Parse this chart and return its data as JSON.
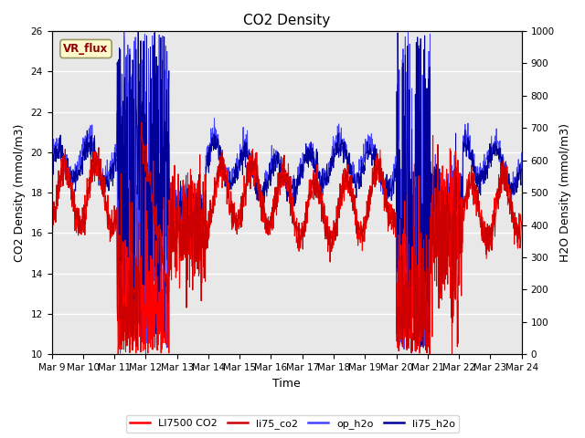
{
  "title": "CO2 Density",
  "xlabel": "Time",
  "ylabel_left": "CO2 Density (mmol/m3)",
  "ylabel_right": "H2O Density (mmol/m3)",
  "ylim_left": [
    10,
    26
  ],
  "ylim_right": [
    0,
    1000
  ],
  "x_tick_labels": [
    "Mar 9",
    "Mar 10",
    "Mar 11",
    "Mar 12",
    "Mar 13",
    "Mar 14",
    "Mar 15",
    "Mar 16",
    "Mar 17",
    "Mar 18",
    "Mar 19",
    "Mar 20",
    "Mar 21",
    "Mar 22",
    "Mar 23",
    "Mar 24"
  ],
  "vr_flux_label": "VR_flux",
  "legend_labels": [
    "LI7500 CO2",
    "li75_co2",
    "op_h2o",
    "li75_h2o"
  ],
  "line_colors_bright_red": "#FF0000",
  "line_colors_dark_red": "#CC0000",
  "line_colors_bright_blue": "#4444FF",
  "line_colors_dark_blue": "#000099",
  "background_color": "#FFFFFF",
  "plot_background": "#E8E8E8",
  "title_fontsize": 11,
  "axis_fontsize": 8,
  "label_fontsize": 9,
  "tick_fontsize": 7.5
}
